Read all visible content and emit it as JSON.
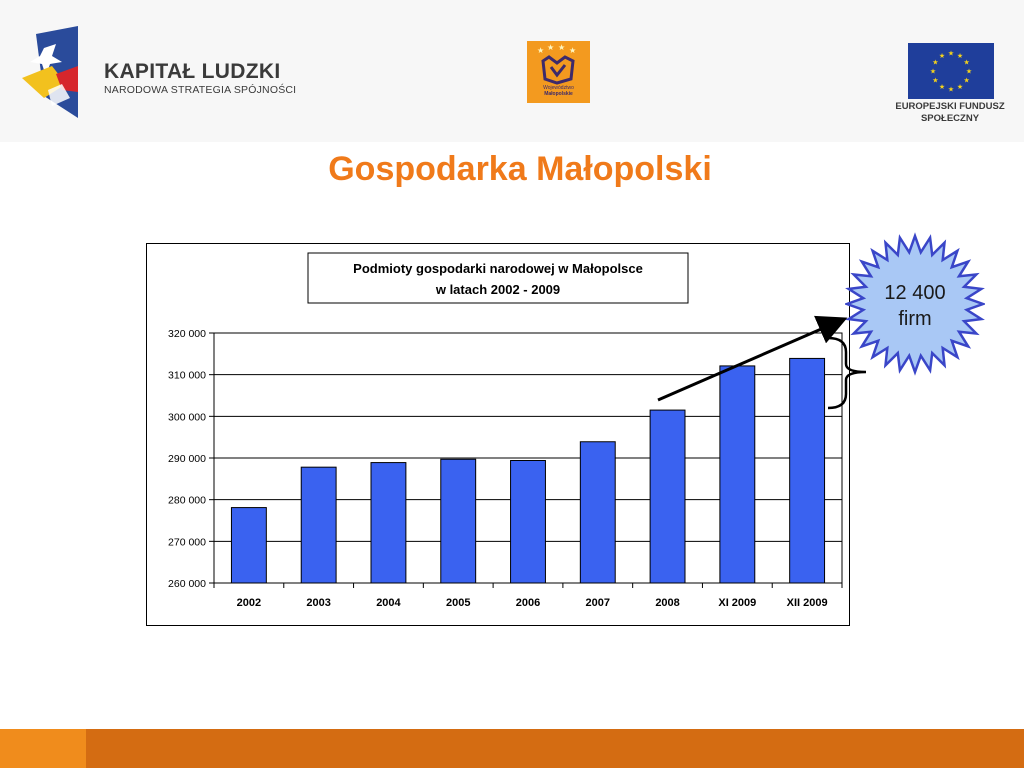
{
  "header": {
    "kapital_title": "KAPITAŁ LUDZKI",
    "kapital_subtitle": "NARODOWA STRATEGIA SPÓJNOŚCI",
    "malopolska_text_1": "Województwo",
    "malopolska_text_2": "Małopolskie",
    "eu_line1": "EUROPEJSKI FUNDUSZ",
    "eu_line2": "SPOŁECZNY"
  },
  "page": {
    "title": "Gospodarka Małopolski"
  },
  "callout": {
    "line1": "12 400",
    "line2": "firm"
  },
  "colors": {
    "bar": "#3a62f0",
    "title_orange": "#f07a1a",
    "star_fill": "#a9c8f5",
    "star_stroke": "#3a46c8",
    "footer": "#d46c12"
  },
  "chart_data": {
    "type": "bar",
    "title_line1": "Podmioty gospodarki narodowej w Małopolsce",
    "title_line2": "w latach 2002 - 2009",
    "categories": [
      "2002",
      "2003",
      "2004",
      "2005",
      "2006",
      "2007",
      "2008",
      "XI 2009",
      "XII 2009"
    ],
    "values": [
      278100,
      287800,
      288900,
      289700,
      289400,
      293900,
      301500,
      312100,
      313900
    ],
    "ylim": [
      260000,
      320000
    ],
    "yticks": [
      260000,
      270000,
      280000,
      290000,
      300000,
      310000,
      320000
    ],
    "ytick_labels": [
      "260 000",
      "270 000",
      "280 000",
      "290 000",
      "300 000",
      "310 000",
      "320 000"
    ],
    "grid": true,
    "legend": "none"
  }
}
